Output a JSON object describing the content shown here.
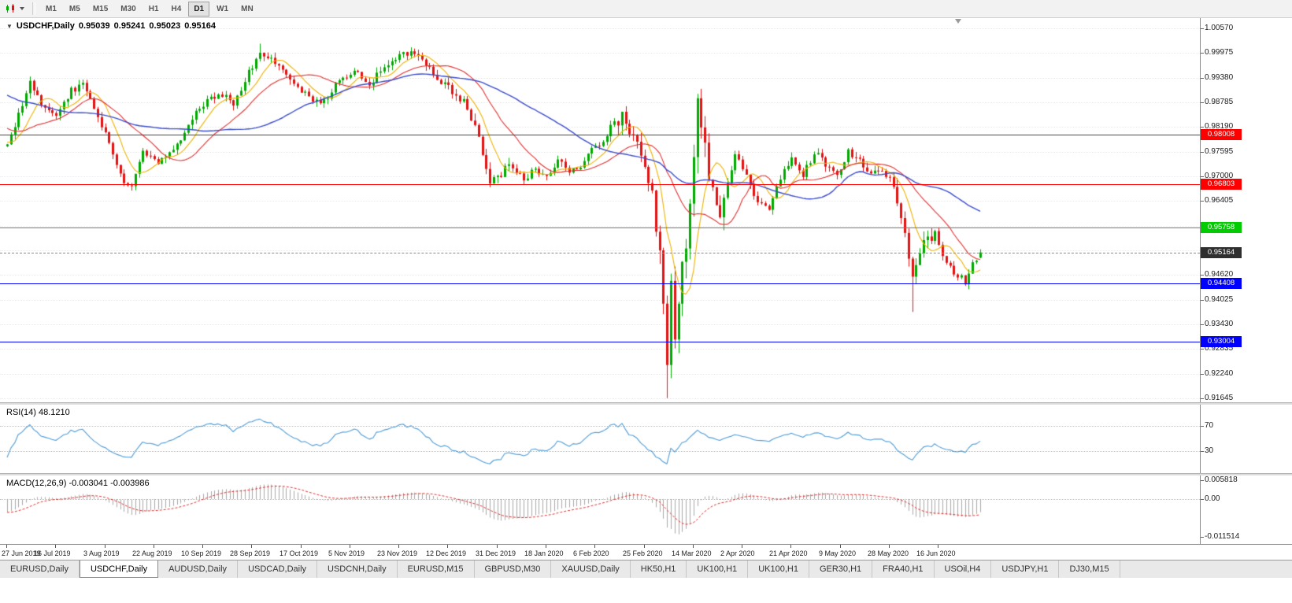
{
  "toolbar": {
    "timeframes": [
      {
        "label": "M1"
      },
      {
        "label": "M5"
      },
      {
        "label": "M15"
      },
      {
        "label": "M30"
      },
      {
        "label": "H1"
      },
      {
        "label": "H4"
      },
      {
        "label": "D1",
        "active": true
      },
      {
        "label": "W1"
      },
      {
        "label": "MN"
      }
    ]
  },
  "chart": {
    "title": {
      "symbol_period": "USDCHF,Daily",
      "open": "0.95039",
      "high": "0.95241",
      "low": "0.95023",
      "close": "0.95164"
    },
    "price_axis": {
      "max": 1.0057,
      "min": 0.91645,
      "ticks": [
        {
          "label": "1.00570",
          "value": 1.0057
        },
        {
          "label": "0.99975",
          "value": 0.99975
        },
        {
          "label": "0.99380",
          "value": 0.9938
        },
        {
          "label": "0.98785",
          "value": 0.98785
        },
        {
          "label": "0.98190",
          "value": 0.9819
        },
        {
          "label": "0.97595",
          "value": 0.97595
        },
        {
          "label": "0.97000",
          "value": 0.97
        },
        {
          "label": "0.96405",
          "value": 0.96405
        },
        {
          "label": "0.94620",
          "value": 0.9462
        },
        {
          "label": "0.94025",
          "value": 0.94025
        },
        {
          "label": "0.93430",
          "value": 0.9343
        },
        {
          "label": "0.92835",
          "value": 0.92835
        },
        {
          "label": "0.92240",
          "value": 0.9224
        },
        {
          "label": "0.91645",
          "value": 0.91645
        }
      ],
      "grid": [
        1.0057,
        0.99975,
        0.9938,
        0.98785,
        0.9819,
        0.97595,
        0.97,
        0.96405,
        0.9581,
        0.95215,
        0.9462,
        0.94025,
        0.9343,
        0.92835,
        0.9224,
        0.91645
      ]
    },
    "levels": [
      {
        "label": "0.98008",
        "value": 0.98008,
        "color": "#ff0000"
      },
      {
        "label": "0.96803",
        "value": 0.96803,
        "color": "#ff0000"
      },
      {
        "label": "0.95758",
        "value": 0.95758,
        "color": "#00cc00"
      },
      {
        "label": "0.94408",
        "value": 0.94408,
        "color": "#0000ff"
      },
      {
        "label": "0.93004",
        "value": 0.93004,
        "color": "#0000ff"
      }
    ],
    "current_price": {
      "label": "0.95164",
      "value": 0.95164,
      "color": "#2f2f2f"
    },
    "colors": {
      "up": "#00a900",
      "down": "#e31212",
      "ma_fast": "#eeb200",
      "ma_mid": "#e03030",
      "ma_slow": "#3b4cca"
    }
  },
  "chart_data": {
    "type": "candlestick",
    "symbol": "USDCHF",
    "period": "Daily",
    "last_bar": 258,
    "waypoints": [
      [
        -50,
        1.003
      ],
      [
        -30,
        0.996
      ],
      [
        -15,
        0.985
      ],
      [
        -5,
        0.978
      ],
      [
        0,
        0.977
      ],
      [
        3,
        0.985
      ],
      [
        6,
        0.9925
      ],
      [
        9,
        0.987
      ],
      [
        13,
        0.984
      ],
      [
        17,
        0.9905
      ],
      [
        20,
        0.992
      ],
      [
        24,
        0.985
      ],
      [
        28,
        0.975
      ],
      [
        31,
        0.969
      ],
      [
        33,
        0.967
      ],
      [
        36,
        0.9755
      ],
      [
        40,
        0.973
      ],
      [
        44,
        0.9765
      ],
      [
        48,
        0.9825
      ],
      [
        52,
        0.9875
      ],
      [
        56,
        0.99
      ],
      [
        60,
        0.9875
      ],
      [
        63,
        0.9935
      ],
      [
        67,
        1.0
      ],
      [
        70,
        0.999
      ],
      [
        74,
        0.9945
      ],
      [
        78,
        0.9905
      ],
      [
        83,
        0.987
      ],
      [
        88,
        0.993
      ],
      [
        92,
        0.9955
      ],
      [
        96,
        0.9925
      ],
      [
        100,
        0.996
      ],
      [
        104,
        0.999
      ],
      [
        107,
        1.0005
      ],
      [
        110,
        0.9975
      ],
      [
        114,
        0.994
      ],
      [
        118,
        0.9905
      ],
      [
        122,
        0.987
      ],
      [
        125,
        0.9795
      ],
      [
        128,
        0.9685
      ],
      [
        131,
        0.9705
      ],
      [
        134,
        0.973
      ],
      [
        137,
        0.9695
      ],
      [
        140,
        0.9715
      ],
      [
        143,
        0.97
      ],
      [
        146,
        0.9735
      ],
      [
        149,
        0.971
      ],
      [
        152,
        0.973
      ],
      [
        155,
        0.976
      ],
      [
        158,
        0.979
      ],
      [
        161,
        0.982
      ],
      [
        163,
        0.984
      ],
      [
        166,
        0.98
      ],
      [
        169,
        0.973
      ],
      [
        171,
        0.965
      ],
      [
        173,
        0.95
      ],
      [
        174,
        0.938
      ],
      [
        175,
        0.926
      ],
      [
        176,
        0.942
      ],
      [
        177,
        0.93
      ],
      [
        178,
        0.942
      ],
      [
        180,
        0.955
      ],
      [
        182,
        0.975
      ],
      [
        183,
        0.987
      ],
      [
        185,
        0.978
      ],
      [
        187,
        0.965
      ],
      [
        189,
        0.96
      ],
      [
        191,
        0.968
      ],
      [
        193,
        0.976
      ],
      [
        196,
        0.97
      ],
      [
        199,
        0.964
      ],
      [
        202,
        0.962
      ],
      [
        205,
        0.97
      ],
      [
        208,
        0.975
      ],
      [
        211,
        0.97
      ],
      [
        214,
        0.976
      ],
      [
        217,
        0.973
      ],
      [
        220,
        0.97
      ],
      [
        223,
        0.976
      ],
      [
        226,
        0.974
      ],
      [
        229,
        0.971
      ],
      [
        232,
        0.972
      ],
      [
        235,
        0.968
      ],
      [
        238,
        0.956
      ],
      [
        240,
        0.945
      ],
      [
        242,
        0.952
      ],
      [
        244,
        0.955
      ],
      [
        246,
        0.956
      ],
      [
        248,
        0.951
      ],
      [
        251,
        0.947
      ],
      [
        254,
        0.9445
      ],
      [
        256,
        0.949
      ],
      [
        258,
        0.95164
      ]
    ],
    "volatility": {
      "default": 0.002,
      "zones": [
        [
          121,
          135,
          0.0027
        ],
        [
          160,
          172,
          0.0036
        ],
        [
          173,
          190,
          0.0062
        ],
        [
          236,
          246,
          0.0034
        ]
      ]
    },
    "special_bars": {
      "67": {
        "high": 1.002
      },
      "163": {
        "high": 0.9846
      },
      "175": {
        "low": 0.9165
      },
      "240": {
        "low": 0.9373
      },
      "258": {
        "open": 0.95039,
        "high": 0.95241,
        "low": 0.95023,
        "close": 0.95164
      }
    },
    "moving_averages": [
      {
        "period": 8,
        "color_key": "ma_fast"
      },
      {
        "period": 20,
        "color_key": "ma_mid"
      },
      {
        "period": 45,
        "color_key": "ma_slow"
      }
    ]
  },
  "rsi": {
    "title": "RSI(14) 48.1210",
    "period": 14,
    "value": "48.1210",
    "color": "#4f9bd5",
    "levels": [
      {
        "label": "70",
        "value": 70
      },
      {
        "label": "30",
        "value": 30
      }
    ],
    "scale": {
      "max": 100,
      "min": 0
    }
  },
  "macd": {
    "title": "MACD(12,26,9) -0.003041 -0.003986",
    "main": "-0.003041",
    "signal": "-0.003986",
    "hist_color": "#a7a7a7",
    "signal_color": "#e03030",
    "axis_labels": [
      {
        "label": "0.005818",
        "value": 0.005818
      },
      {
        "label": "0.00",
        "value": 0
      },
      {
        "label": "-0.011514",
        "value": -0.011514
      }
    ],
    "scale": {
      "max": 0.0066,
      "min": -0.0128
    }
  },
  "time_axis": {
    "labels": [
      "27 Jun 2019",
      "16 Jul 2019",
      "3 Aug 2019",
      "22 Aug 2019",
      "10 Sep 2019",
      "28 Sep 2019",
      "17 Oct 2019",
      "5 Nov 2019",
      "23 Nov 2019",
      "12 Dec 2019",
      "31 Dec 2019",
      "18 Jan 2020",
      "6 Feb 2020",
      "25 Feb 2020",
      "14 Mar 2020",
      "2 Apr 2020",
      "21 Apr 2020",
      "9 May 2020",
      "28 May 2020",
      "16 Jun 2020"
    ]
  },
  "tabs": [
    {
      "label": "EURUSD,Daily"
    },
    {
      "label": "USDCHF,Daily",
      "active": true
    },
    {
      "label": "AUDUSD,Daily"
    },
    {
      "label": "USDCAD,Daily"
    },
    {
      "label": "USDCNH,Daily"
    },
    {
      "label": "EURUSD,M15"
    },
    {
      "label": "GBPUSD,M30"
    },
    {
      "label": "XAUUSD,Daily"
    },
    {
      "label": "HK50,H1"
    },
    {
      "label": "UK100,H1"
    },
    {
      "label": "UK100,H1"
    },
    {
      "label": "GER30,H1"
    },
    {
      "label": "FRA40,H1"
    },
    {
      "label": "USOil,H4"
    },
    {
      "label": "USDJPY,H1"
    },
    {
      "label": "DJ30,M15"
    }
  ]
}
